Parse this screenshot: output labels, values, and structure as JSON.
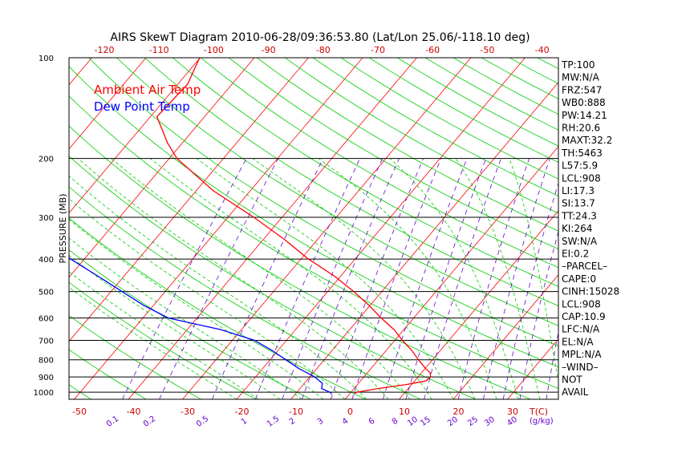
{
  "title": "AIRS SkewT Diagram 2010-06-28/09:36:53.80 (Lat/Lon 25.06/-118.10 deg)",
  "legend": [
    "Ambient Air Temp",
    "Dew Point Temp"
  ],
  "colors": {
    "temp": "#ff0000",
    "dew": "#0000ff",
    "dry_adiabat": "#00cc00",
    "moist_adiabat": "#00cc00",
    "mixing_ratio": "#6600cc",
    "isotherm": "#ff0000",
    "isobar": "#000000"
  },
  "stats": [
    "TP:100",
    "MW:N/A",
    "FRZ:547",
    "WB0:888",
    "PW:14.21",
    "RH:20.6",
    "MAXT:32.2",
    "TH:5463",
    "L57:5.9",
    "LCL:908",
    "LI:17.3",
    "SI:13.7",
    "TT:24.3",
    "KI:264",
    "SW:N/A",
    "EI:0.2",
    "–PARCEL–",
    "CAPE:0",
    "CINH:15028",
    "LCL:908",
    "CAP:10.9",
    "LFC:N/A",
    "EL:N/A",
    "MPL:N/A",
    "–WIND–",
    "NOT",
    "AVAIL"
  ],
  "chart_data": {
    "type": "line",
    "title": "AIRS SkewT Diagram 2010-06-28/09:36:53.80 (Lat/Lon 25.06/-118.10 deg)",
    "ylabel": "PRESSURE (MB)",
    "xlabel": "T(C)",
    "y_scale": "log",
    "ylim": [
      1050,
      100
    ],
    "xlim": [
      -50,
      40
    ],
    "y_ticks": [
      100,
      200,
      300,
      400,
      500,
      600,
      700,
      800,
      900,
      1000
    ],
    "x_ticks_bottom": [
      -50,
      -40,
      -30,
      -20,
      -10,
      0,
      10,
      20,
      30
    ],
    "x_ticks_top": [
      -120,
      -110,
      -100,
      -90,
      -80,
      -70,
      -60,
      -50,
      -40
    ],
    "mixing_ratio_labels": [
      "0.1",
      "0.2",
      "0.5",
      "1",
      "1.5",
      "2",
      "3",
      "4",
      "6",
      "8",
      "10",
      "15",
      "20",
      "25",
      "30",
      "40"
    ],
    "mixing_ratio_unit": "(g/kg)",
    "series": [
      {
        "name": "Ambient Air Temp",
        "points": [
          {
            "p": 100,
            "t": -80.1
          },
          {
            "p": 120,
            "t": -78.2
          },
          {
            "p": 150,
            "t": -78.8
          },
          {
            "p": 180,
            "t": -72.7
          },
          {
            "p": 200,
            "t": -68.6
          },
          {
            "p": 250,
            "t": -56.8
          },
          {
            "p": 300,
            "t": -45.2
          },
          {
            "p": 350,
            "t": -36.0
          },
          {
            "p": 400,
            "t": -28.6
          },
          {
            "p": 450,
            "t": -21.1
          },
          {
            "p": 500,
            "t": -15.2
          },
          {
            "p": 550,
            "t": -10.2
          },
          {
            "p": 600,
            "t": -6.0
          },
          {
            "p": 650,
            "t": -1.8
          },
          {
            "p": 700,
            "t": 1.4
          },
          {
            "p": 750,
            "t": 4.7
          },
          {
            "p": 800,
            "t": 7.4
          },
          {
            "p": 850,
            "t": 10.1
          },
          {
            "p": 875,
            "t": 11.6
          },
          {
            "p": 900,
            "t": 12.3
          },
          {
            "p": 925,
            "t": 12.1
          },
          {
            "p": 950,
            "t": 8.8
          },
          {
            "p": 975,
            "t": 4.4
          },
          {
            "p": 1000,
            "t": 1.0
          },
          {
            "p": 1012,
            "t": 0.9
          }
        ]
      },
      {
        "name": "Dew Point Temp",
        "points": [
          {
            "p": 100,
            "t": -134.9
          },
          {
            "p": 150,
            "t": -119.7
          },
          {
            "p": 200,
            "t": -107.4
          },
          {
            "p": 250,
            "t": -98.2
          },
          {
            "p": 300,
            "t": -90.9
          },
          {
            "p": 350,
            "t": -80.0
          },
          {
            "p": 400,
            "t": -72.5
          },
          {
            "p": 450,
            "t": -64.8
          },
          {
            "p": 500,
            "t": -58.0
          },
          {
            "p": 550,
            "t": -51.8
          },
          {
            "p": 600,
            "t": -45.3
          },
          {
            "p": 650,
            "t": -33.8
          },
          {
            "p": 700,
            "t": -25.9
          },
          {
            "p": 750,
            "t": -21.1
          },
          {
            "p": 800,
            "t": -17.1
          },
          {
            "p": 850,
            "t": -13.3
          },
          {
            "p": 900,
            "t": -9.1
          },
          {
            "p": 940,
            "t": -6.7
          },
          {
            "p": 975,
            "t": -6.0
          },
          {
            "p": 1000,
            "t": -3.9
          },
          {
            "p": 1012,
            "t": -3.3
          }
        ]
      }
    ]
  }
}
